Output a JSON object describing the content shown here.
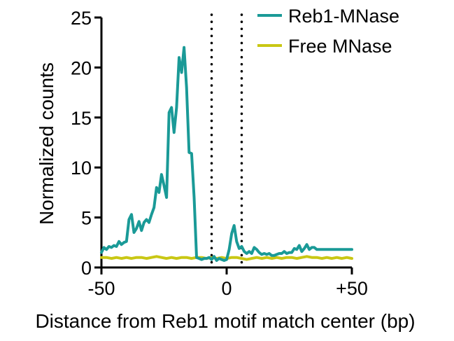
{
  "chart_data": {
    "type": "line",
    "xlabel": "Distance from Reb1 motif match center (bp)",
    "ylabel": "Normalized counts",
    "xlim": [
      -50,
      50
    ],
    "ylim": [
      0,
      25
    ],
    "x_ticks": [
      -50,
      0,
      50
    ],
    "x_tick_labels": [
      "-50",
      "0",
      "+50"
    ],
    "y_ticks": [
      0,
      5,
      10,
      15,
      20,
      25
    ],
    "y_tick_labels": [
      "0",
      "5",
      "10",
      "15",
      "20",
      "25"
    ],
    "grid": false,
    "legend_position": "top-right",
    "reference_lines": {
      "x": [
        -6,
        6
      ],
      "style": "dotted",
      "color": "#000000"
    },
    "series": [
      {
        "name": "Reb1-MNase",
        "color": "#1a9a97",
        "x": [
          -50,
          -49,
          -48,
          -47,
          -46,
          -45,
          -44,
          -43,
          -42,
          -41,
          -40,
          -39,
          -38,
          -37,
          -36,
          -35,
          -34,
          -33,
          -32,
          -31,
          -30,
          -29,
          -28,
          -27,
          -26,
          -25,
          -24,
          -23,
          -22,
          -21,
          -20,
          -19,
          -18,
          -17,
          -16,
          -15,
          -14,
          -13,
          -12,
          -11,
          -10,
          -9,
          -8,
          -7,
          -6,
          -5,
          -4,
          -3,
          -2,
          -1,
          0,
          1,
          2,
          3,
          4,
          5,
          6,
          7,
          8,
          9,
          10,
          11,
          12,
          13,
          14,
          15,
          16,
          17,
          18,
          19,
          20,
          21,
          22,
          23,
          24,
          25,
          26,
          27,
          28,
          29,
          30,
          31,
          32,
          33,
          34,
          35,
          36,
          37,
          38,
          39,
          40,
          41,
          42,
          43,
          44,
          45,
          46,
          47,
          48,
          49,
          50
        ],
        "values": [
          1.5,
          2.0,
          1.8,
          2.1,
          2.0,
          2.2,
          2.1,
          2.6,
          2.3,
          2.5,
          2.6,
          4.8,
          5.3,
          3.5,
          3.9,
          4.6,
          3.7,
          4.5,
          4.8,
          4.5,
          5.3,
          6.0,
          8.0,
          7.5,
          9.3,
          8.2,
          7.0,
          15.5,
          16.0,
          13.5,
          16.0,
          21.0,
          19.5,
          22.0,
          18.0,
          11.5,
          11.4,
          7.0,
          1.0,
          0.9,
          0.8,
          0.9,
          0.9,
          1.0,
          0.8,
          1.1,
          0.7,
          0.9,
          0.8,
          0.7,
          0.8,
          1.8,
          3.4,
          4.2,
          2.6,
          1.9,
          2.1,
          1.6,
          1.4,
          1.6,
          1.4,
          2.0,
          1.8,
          1.5,
          1.3,
          1.4,
          1.3,
          1.4,
          1.2,
          1.2,
          1.3,
          1.4,
          1.4,
          1.6,
          1.4,
          1.5,
          1.5,
          1.9,
          1.8,
          2.2,
          1.6,
          1.9,
          2.3,
          1.8,
          2.0,
          2.0,
          1.8,
          1.8,
          1.8,
          1.8,
          1.8,
          1.8,
          1.8,
          1.8,
          1.8,
          1.8,
          1.8,
          1.8,
          1.8,
          1.8,
          1.8
        ]
      },
      {
        "name": "Free MNase",
        "color": "#c9c714",
        "x": [
          -50,
          -48,
          -46,
          -44,
          -42,
          -40,
          -38,
          -36,
          -34,
          -32,
          -30,
          -28,
          -26,
          -24,
          -22,
          -20,
          -18,
          -16,
          -14,
          -12,
          -10,
          -8,
          -6,
          -4,
          -2,
          0,
          2,
          4,
          6,
          8,
          10,
          12,
          14,
          16,
          18,
          20,
          22,
          24,
          26,
          28,
          30,
          32,
          34,
          36,
          38,
          40,
          42,
          44,
          46,
          48,
          50
        ],
        "values": [
          1.0,
          1.0,
          0.9,
          1.0,
          0.9,
          1.0,
          0.9,
          1.0,
          1.0,
          0.9,
          1.0,
          1.1,
          1.0,
          0.9,
          1.0,
          0.9,
          1.0,
          1.0,
          0.9,
          1.0,
          1.0,
          0.9,
          1.0,
          0.9,
          1.0,
          0.9,
          1.0,
          1.0,
          0.9,
          0.8,
          0.9,
          1.0,
          0.9,
          1.0,
          0.9,
          1.0,
          0.9,
          1.0,
          1.0,
          0.9,
          1.0,
          1.1,
          1.0,
          1.0,
          0.9,
          1.0,
          0.9,
          1.0,
          0.9,
          1.0,
          0.9
        ]
      }
    ]
  }
}
